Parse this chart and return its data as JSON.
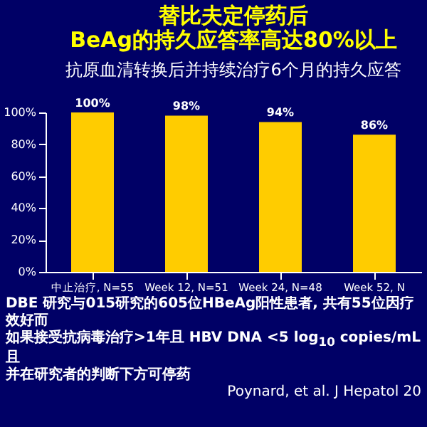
{
  "chart_data": {
    "type": "bar",
    "title": [
      "替比夫定停药后",
      "BeAg的持久应答率高达80%以上"
    ],
    "subtitle": "抗原血清转换后并持续治疗6个月的持久应答",
    "categories": [
      "中止治疗, N=55",
      "Week 12, N=51",
      "Week 24, N=48",
      "Week 52, N"
    ],
    "values": [
      100,
      98,
      94,
      86
    ],
    "value_labels": [
      "100%",
      "98%",
      "94%",
      "86%"
    ],
    "color": "#ffcc00",
    "ylim": [
      0,
      100
    ],
    "yticks": [
      {
        "value": 0,
        "label": "0%"
      },
      {
        "value": 20,
        "label": "20%"
      },
      {
        "value": 40,
        "label": "40%"
      },
      {
        "value": 60,
        "label": "60%"
      },
      {
        "value": 80,
        "label": "80%"
      },
      {
        "value": 100,
        "label": "100%"
      }
    ],
    "grid": false,
    "annotations": [
      "DBE 研究与015研究的605位HBeAg阳性患者, 共有55位因疗效好而",
      "如果接受抗病毒治疗>1年且 HBV DNA <5 log$_{10}$ copies/mL 且",
      "并在研究者的判断下方可停药",
      "Poynard, et al. J Hepatol 20"
    ]
  }
}
